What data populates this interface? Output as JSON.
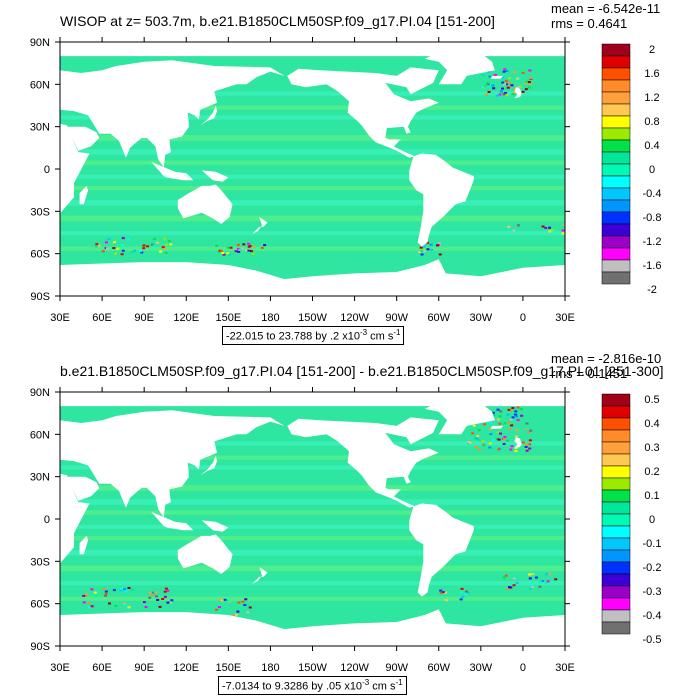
{
  "chart_data": [
    {
      "type": "heatmap",
      "title": "WISOP at z= 503.7m, b.e21.B1850CLM50SP.f09_g17.PI.04 [151-200]",
      "stats": {
        "mean": "mean = -6.542e-11",
        "rms": "rms = 0.4641"
      },
      "xlim": [
        30,
        390
      ],
      "ylim": [
        -90,
        90
      ],
      "x_ticks": [
        "30E",
        "60E",
        "90E",
        "120E",
        "150E",
        "180",
        "150W",
        "120W",
        "90W",
        "60W",
        "30W",
        "0",
        "30E"
      ],
      "y_ticks": [
        "90N",
        "60N",
        "30N",
        "0",
        "30S",
        "60S",
        "90S"
      ],
      "range_label": {
        "text": "-22.015 to 23.788 by .2 x10",
        "exp": "-3",
        "unit": " cm s",
        "unit_exp": "-1"
      },
      "colorbar_labels": [
        "2",
        "1.6",
        "1.2",
        "0.8",
        "0.4",
        "0",
        "-0.4",
        "-0.8",
        "-1.2",
        "-1.6",
        "-2"
      ],
      "colorbar_colors": [
        "#a0001a",
        "#e00000",
        "#ff5000",
        "#ff8c28",
        "#ffa03c",
        "#ffc850",
        "#ffff00",
        "#9bea00",
        "#00e14a",
        "#00e69b",
        "#00fab4",
        "#00ffff",
        "#00c8ff",
        "#0096ff",
        "#0032ff",
        "#3c00d7",
        "#9b00c8",
        "#ff00ff",
        "#c0c0c0",
        "#707070"
      ],
      "grid": false,
      "legend_placement": "right"
    },
    {
      "type": "heatmap",
      "title": "b.e21.B1850CLM50SP.f09_g17.PI.04 [151-200] - b.e21.B1850CLM50SP.f09_g17.PI.01 [251-300]",
      "stats": {
        "mean": "mean = -2.816e-10",
        "rms": "rms = 0.1451"
      },
      "xlim": [
        30,
        390
      ],
      "ylim": [
        -90,
        90
      ],
      "x_ticks": [
        "30E",
        "60E",
        "90E",
        "120E",
        "150E",
        "180",
        "150W",
        "120W",
        "90W",
        "60W",
        "30W",
        "0",
        "30E"
      ],
      "y_ticks": [
        "90N",
        "60N",
        "30N",
        "0",
        "30S",
        "60S",
        "90S"
      ],
      "range_label": {
        "text": "-7.0134 to 9.3286 by .05 x10",
        "exp": "-3",
        "unit": " cm s",
        "unit_exp": "-1"
      },
      "colorbar_labels": [
        "0.5",
        "0.4",
        "0.3",
        "0.2",
        "0.1",
        "0",
        "-0.1",
        "-0.2",
        "-0.3",
        "-0.4",
        "-0.5"
      ],
      "colorbar_colors": [
        "#a0001a",
        "#e00000",
        "#ff5000",
        "#ff8c28",
        "#ffa03c",
        "#ffc850",
        "#ffff00",
        "#9bea00",
        "#00e14a",
        "#00e69b",
        "#00fab4",
        "#00ffff",
        "#00c8ff",
        "#0096ff",
        "#0032ff",
        "#3c00d7",
        "#9b00c8",
        "#ff00ff",
        "#c0c0c0",
        "#707070"
      ],
      "grid": false,
      "legend_placement": "right"
    }
  ],
  "colors": {
    "ocean_main": "#2ee6a0",
    "ocean_alt": "#55ef8a",
    "ocean_band": "#39f0b8",
    "land": "#ffffff"
  }
}
